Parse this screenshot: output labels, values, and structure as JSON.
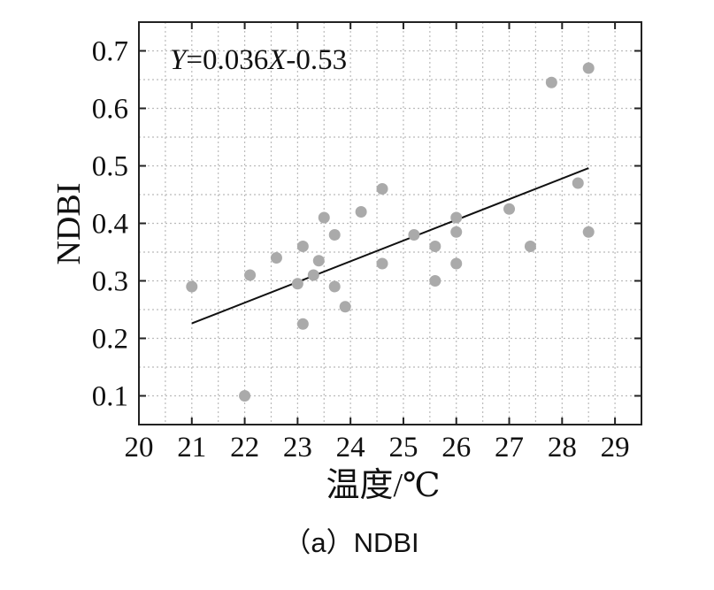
{
  "chart_data": {
    "type": "scatter",
    "xlabel": "温度/℃",
    "ylabel": "NDBI",
    "xlim": [
      20,
      29.5
    ],
    "ylim": [
      0.05,
      0.75
    ],
    "x_ticks": [
      "20",
      "21",
      "22",
      "23",
      "24",
      "25",
      "26",
      "27",
      "28",
      "29"
    ],
    "y_ticks": [
      "0.1",
      "0.2",
      "0.3",
      "0.4",
      "0.5",
      "0.6",
      "0.7"
    ],
    "grid": true,
    "equation": {
      "y_var": "Y",
      "eq": "=0.036",
      "x_var": "X",
      "rest": "-0.53"
    },
    "trendline": {
      "slope": 0.036,
      "intercept": -0.53,
      "x_range": [
        21,
        28.5
      ]
    },
    "points": [
      [
        21.0,
        0.29
      ],
      [
        22.0,
        0.1
      ],
      [
        22.1,
        0.31
      ],
      [
        22.6,
        0.34
      ],
      [
        23.0,
        0.295
      ],
      [
        23.1,
        0.36
      ],
      [
        23.1,
        0.225
      ],
      [
        23.3,
        0.31
      ],
      [
        23.4,
        0.335
      ],
      [
        23.5,
        0.41
      ],
      [
        23.7,
        0.29
      ],
      [
        23.7,
        0.38
      ],
      [
        23.9,
        0.255
      ],
      [
        24.2,
        0.42
      ],
      [
        24.6,
        0.46
      ],
      [
        24.6,
        0.33
      ],
      [
        25.2,
        0.38
      ],
      [
        25.6,
        0.3
      ],
      [
        25.6,
        0.36
      ],
      [
        26.0,
        0.33
      ],
      [
        26.0,
        0.41
      ],
      [
        26.0,
        0.385
      ],
      [
        27.0,
        0.425
      ],
      [
        27.4,
        0.36
      ],
      [
        27.8,
        0.645
      ],
      [
        28.3,
        0.47
      ],
      [
        28.5,
        0.385
      ],
      [
        28.5,
        0.67
      ]
    ],
    "colors": {
      "point": "#aaaaaa",
      "line": "#111111",
      "frame": "#222222",
      "grid": "#bbbbbb"
    }
  },
  "caption": "（a）NDBI"
}
